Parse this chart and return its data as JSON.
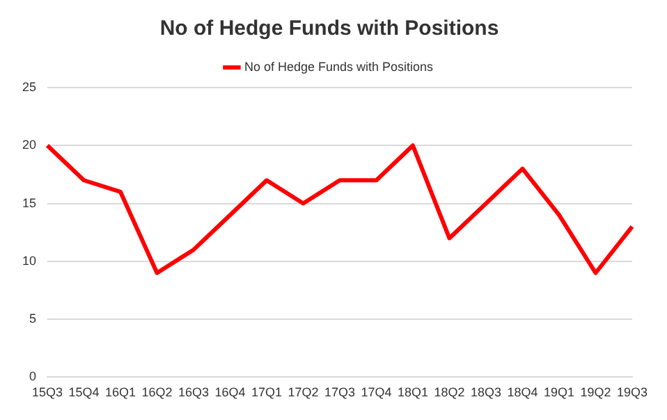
{
  "chart_data": {
    "type": "line",
    "title": "No of Hedge Funds with Positions",
    "categories": [
      "15Q3",
      "15Q4",
      "16Q1",
      "16Q2",
      "16Q3",
      "16Q4",
      "17Q1",
      "17Q2",
      "17Q3",
      "17Q4",
      "18Q1",
      "18Q2",
      "18Q3",
      "18Q4",
      "19Q1",
      "19Q2",
      "19Q3"
    ],
    "series": [
      {
        "name": "No of Hedge Funds with Positions",
        "color": "#ff0000",
        "values": [
          20,
          17,
          16,
          9,
          11,
          14,
          17,
          15,
          17,
          17,
          20,
          12,
          15,
          18,
          14,
          9,
          13
        ]
      }
    ],
    "ylim": [
      0,
      25
    ],
    "yticks": [
      0,
      5,
      10,
      15,
      20,
      25
    ],
    "grid": "y",
    "legend": "top",
    "marker": "none",
    "line_style": "solid"
  }
}
